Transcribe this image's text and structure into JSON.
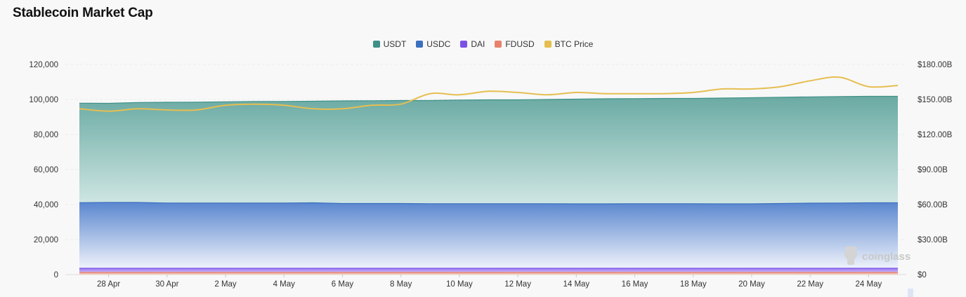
{
  "title": "Stablecoin Market Cap",
  "watermark": "coinglass",
  "legend": [
    {
      "name": "USDT",
      "color": "#3f9188"
    },
    {
      "name": "USDC",
      "color": "#3c70be"
    },
    {
      "name": "DAI",
      "color": "#7b52e6"
    },
    {
      "name": "FDUSD",
      "color": "#e8826a"
    },
    {
      "name": "BTC Price",
      "color": "#e6be50"
    }
  ],
  "chart_data": {
    "type": "area",
    "title": "Stablecoin Market Cap",
    "x_labels": [
      "28 Apr",
      "30 Apr",
      "2 May",
      "4 May",
      "6 May",
      "8 May",
      "10 May",
      "12 May",
      "14 May",
      "16 May",
      "18 May",
      "20 May",
      "22 May",
      "24 May"
    ],
    "x": [
      "27 Apr",
      "28 Apr",
      "29 Apr",
      "30 Apr",
      "1 May",
      "2 May",
      "3 May",
      "4 May",
      "5 May",
      "6 May",
      "7 May",
      "8 May",
      "9 May",
      "10 May",
      "11 May",
      "12 May",
      "13 May",
      "14 May",
      "15 May",
      "16 May",
      "17 May",
      "18 May",
      "19 May",
      "20 May",
      "21 May",
      "22 May",
      "23 May",
      "24 May",
      "25 May"
    ],
    "ylim_left": [
      0,
      120000
    ],
    "y_ticks_left": [
      "0",
      "20,000",
      "40,000",
      "60,000",
      "80,000",
      "100,000",
      "120,000"
    ],
    "ylim_right": [
      0,
      180
    ],
    "y_ticks_right": [
      "$0",
      "$30.00B",
      "$60.00B",
      "$90.00B",
      "$120.00B",
      "$150.00B",
      "$180.00B"
    ],
    "grid": true,
    "legend_position": "top-center",
    "stacked": true,
    "series": [
      {
        "name": "FDUSD",
        "axis": "left",
        "values": [
          1200,
          1200,
          1200,
          1200,
          1200,
          1200,
          1200,
          1200,
          1200,
          1200,
          1200,
          1200,
          1200,
          1200,
          1200,
          1200,
          1200,
          1200,
          1200,
          1200,
          1200,
          1200,
          1200,
          1200,
          1200,
          1200,
          1200,
          1200,
          1200
        ]
      },
      {
        "name": "DAI",
        "axis": "left",
        "values": [
          2400,
          2400,
          2400,
          2400,
          2400,
          2400,
          2400,
          2400,
          2400,
          2400,
          2400,
          2400,
          2400,
          2400,
          2400,
          2400,
          2400,
          2400,
          2400,
          2400,
          2400,
          2400,
          2400,
          2400,
          2400,
          2400,
          2400,
          2400,
          2400
        ]
      },
      {
        "name": "USDC",
        "axis": "left",
        "values": [
          37500,
          37600,
          37600,
          37300,
          37300,
          37300,
          37300,
          37300,
          37400,
          37000,
          37000,
          37000,
          36900,
          36900,
          36900,
          36900,
          36900,
          36800,
          36800,
          36900,
          36900,
          36900,
          36800,
          36800,
          37000,
          37200,
          37300,
          37400,
          37400
        ]
      },
      {
        "name": "USDT",
        "axis": "left",
        "values": [
          56800,
          56600,
          57100,
          57500,
          57600,
          57800,
          58000,
          58000,
          58000,
          58600,
          58700,
          58800,
          58900,
          59200,
          59300,
          59300,
          59500,
          59800,
          60000,
          60000,
          60100,
          60100,
          60400,
          60600,
          60700,
          60700,
          60800,
          60800,
          60800
        ]
      },
      {
        "name": "BTC Price",
        "axis": "right",
        "values": [
          142,
          140,
          142,
          141,
          141,
          145,
          146,
          145,
          142,
          142,
          145,
          146,
          155,
          154,
          157,
          156,
          154,
          156,
          155,
          155,
          155,
          156,
          159,
          159,
          161,
          166,
          169,
          161,
          162
        ]
      }
    ]
  }
}
